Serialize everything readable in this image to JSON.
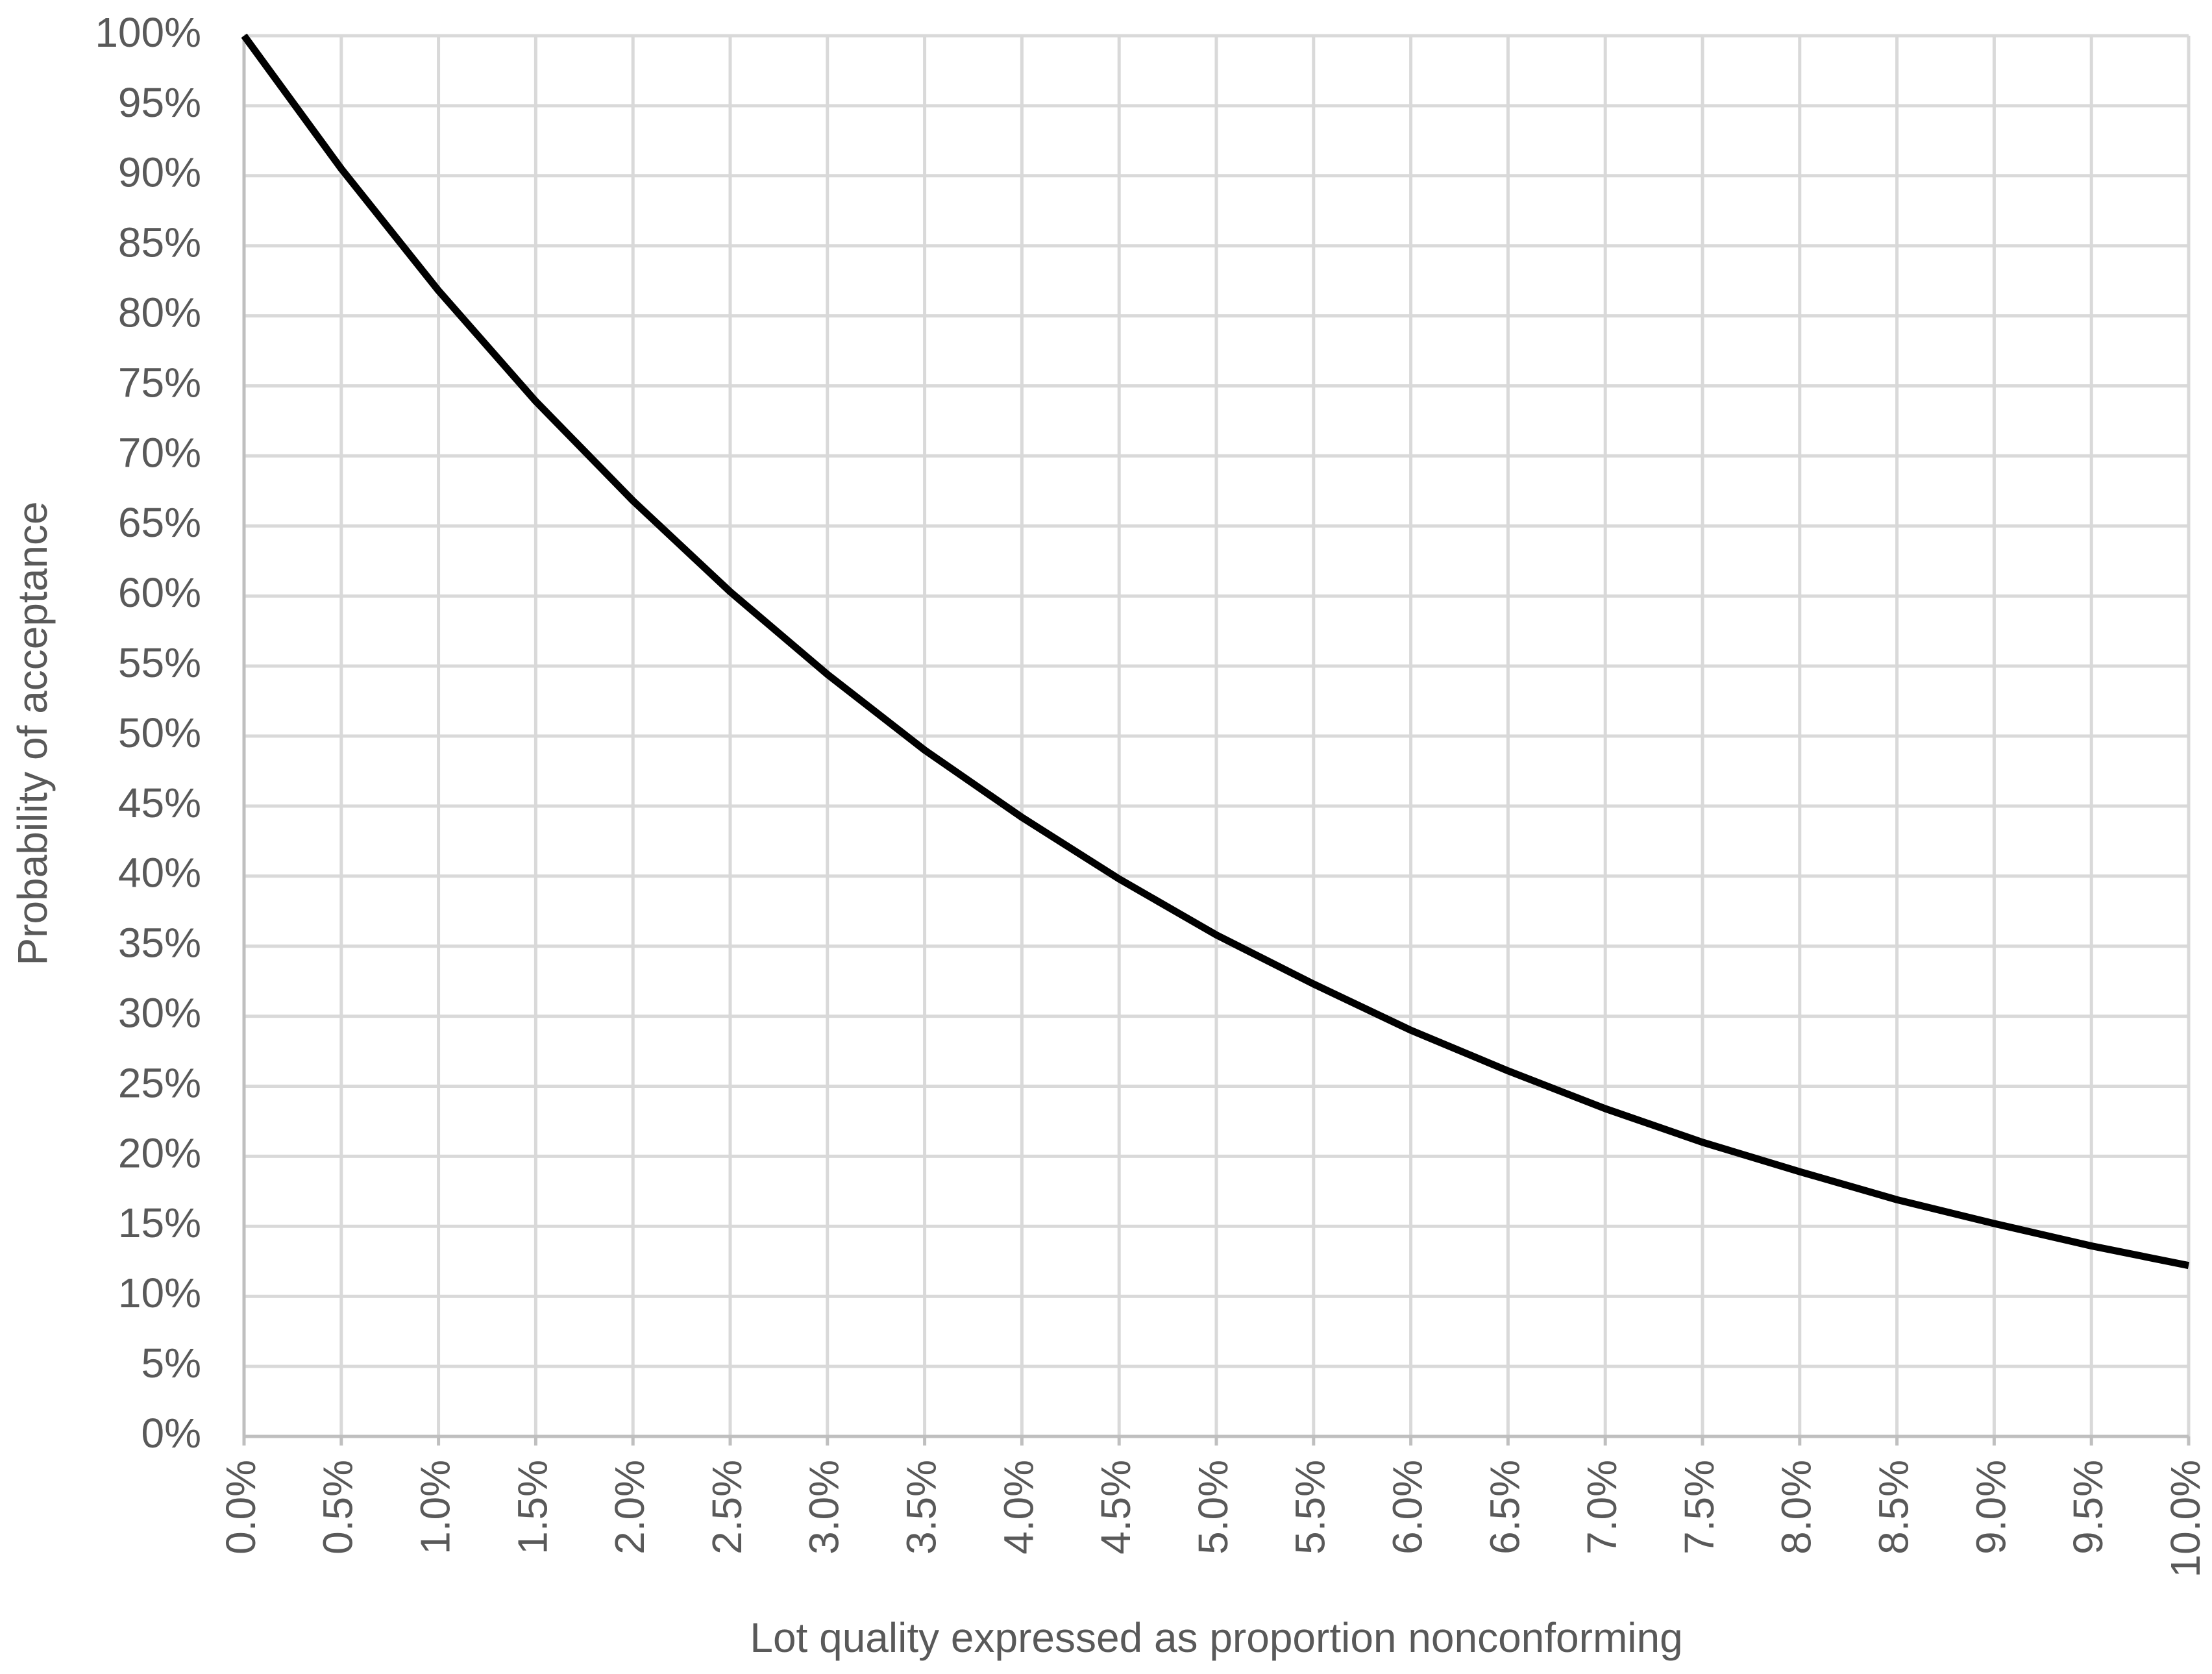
{
  "chart_data": {
    "type": "line",
    "x_label": "Lot quality expressed as proportion nonconforming",
    "y_label": "Probability of acceptance",
    "x": [
      0,
      0.5,
      1,
      1.5,
      2,
      2.5,
      3,
      3.5,
      4,
      4.5,
      5,
      5.5,
      6,
      6.5,
      7,
      7.5,
      8,
      8.5,
      9,
      9.5,
      10
    ],
    "values": [
      100,
      90.5,
      81.8,
      73.9,
      66.8,
      60.3,
      54.4,
      49.0,
      44.2,
      39.8,
      35.8,
      32.3,
      29.0,
      26.1,
      23.4,
      21.0,
      18.9,
      16.9,
      15.2,
      13.6,
      12.2
    ],
    "color": "#000000",
    "xlim": [
      0,
      10
    ],
    "ylim": [
      0,
      100
    ],
    "xticks": [
      {
        "value": 0,
        "label": "0.0%"
      },
      {
        "value": 0.5,
        "label": "0.5%"
      },
      {
        "value": 1,
        "label": "1.0%"
      },
      {
        "value": 1.5,
        "label": "1.5%"
      },
      {
        "value": 2,
        "label": "2.0%"
      },
      {
        "value": 2.5,
        "label": "2.5%"
      },
      {
        "value": 3,
        "label": "3.0%"
      },
      {
        "value": 3.5,
        "label": "3.5%"
      },
      {
        "value": 4,
        "label": "4.0%"
      },
      {
        "value": 4.5,
        "label": "4.5%"
      },
      {
        "value": 5,
        "label": "5.0%"
      },
      {
        "value": 5.5,
        "label": "5.5%"
      },
      {
        "value": 6,
        "label": "6.0%"
      },
      {
        "value": 6.5,
        "label": "6.5%"
      },
      {
        "value": 7,
        "label": "7.0%"
      },
      {
        "value": 7.5,
        "label": "7.5%"
      },
      {
        "value": 8,
        "label": "8.0%"
      },
      {
        "value": 8.5,
        "label": "8.5%"
      },
      {
        "value": 9,
        "label": "9.0%"
      },
      {
        "value": 9.5,
        "label": "9.5%"
      },
      {
        "value": 10,
        "label": "10.0%"
      }
    ],
    "yticks": [
      {
        "value": 0,
        "label": "0%"
      },
      {
        "value": 5,
        "label": "5%"
      },
      {
        "value": 10,
        "label": "10%"
      },
      {
        "value": 15,
        "label": "15%"
      },
      {
        "value": 20,
        "label": "20%"
      },
      {
        "value": 25,
        "label": "25%"
      },
      {
        "value": 30,
        "label": "30%"
      },
      {
        "value": 35,
        "label": "35%"
      },
      {
        "value": 40,
        "label": "40%"
      },
      {
        "value": 45,
        "label": "45%"
      },
      {
        "value": 50,
        "label": "50%"
      },
      {
        "value": 55,
        "label": "55%"
      },
      {
        "value": 60,
        "label": "60%"
      },
      {
        "value": 65,
        "label": "65%"
      },
      {
        "value": 70,
        "label": "70%"
      },
      {
        "value": 75,
        "label": "75%"
      },
      {
        "value": 80,
        "label": "80%"
      },
      {
        "value": 85,
        "label": "85%"
      },
      {
        "value": 90,
        "label": "90%"
      },
      {
        "value": 95,
        "label": "95%"
      },
      {
        "value": 100,
        "label": "100%"
      }
    ],
    "grid": true
  }
}
